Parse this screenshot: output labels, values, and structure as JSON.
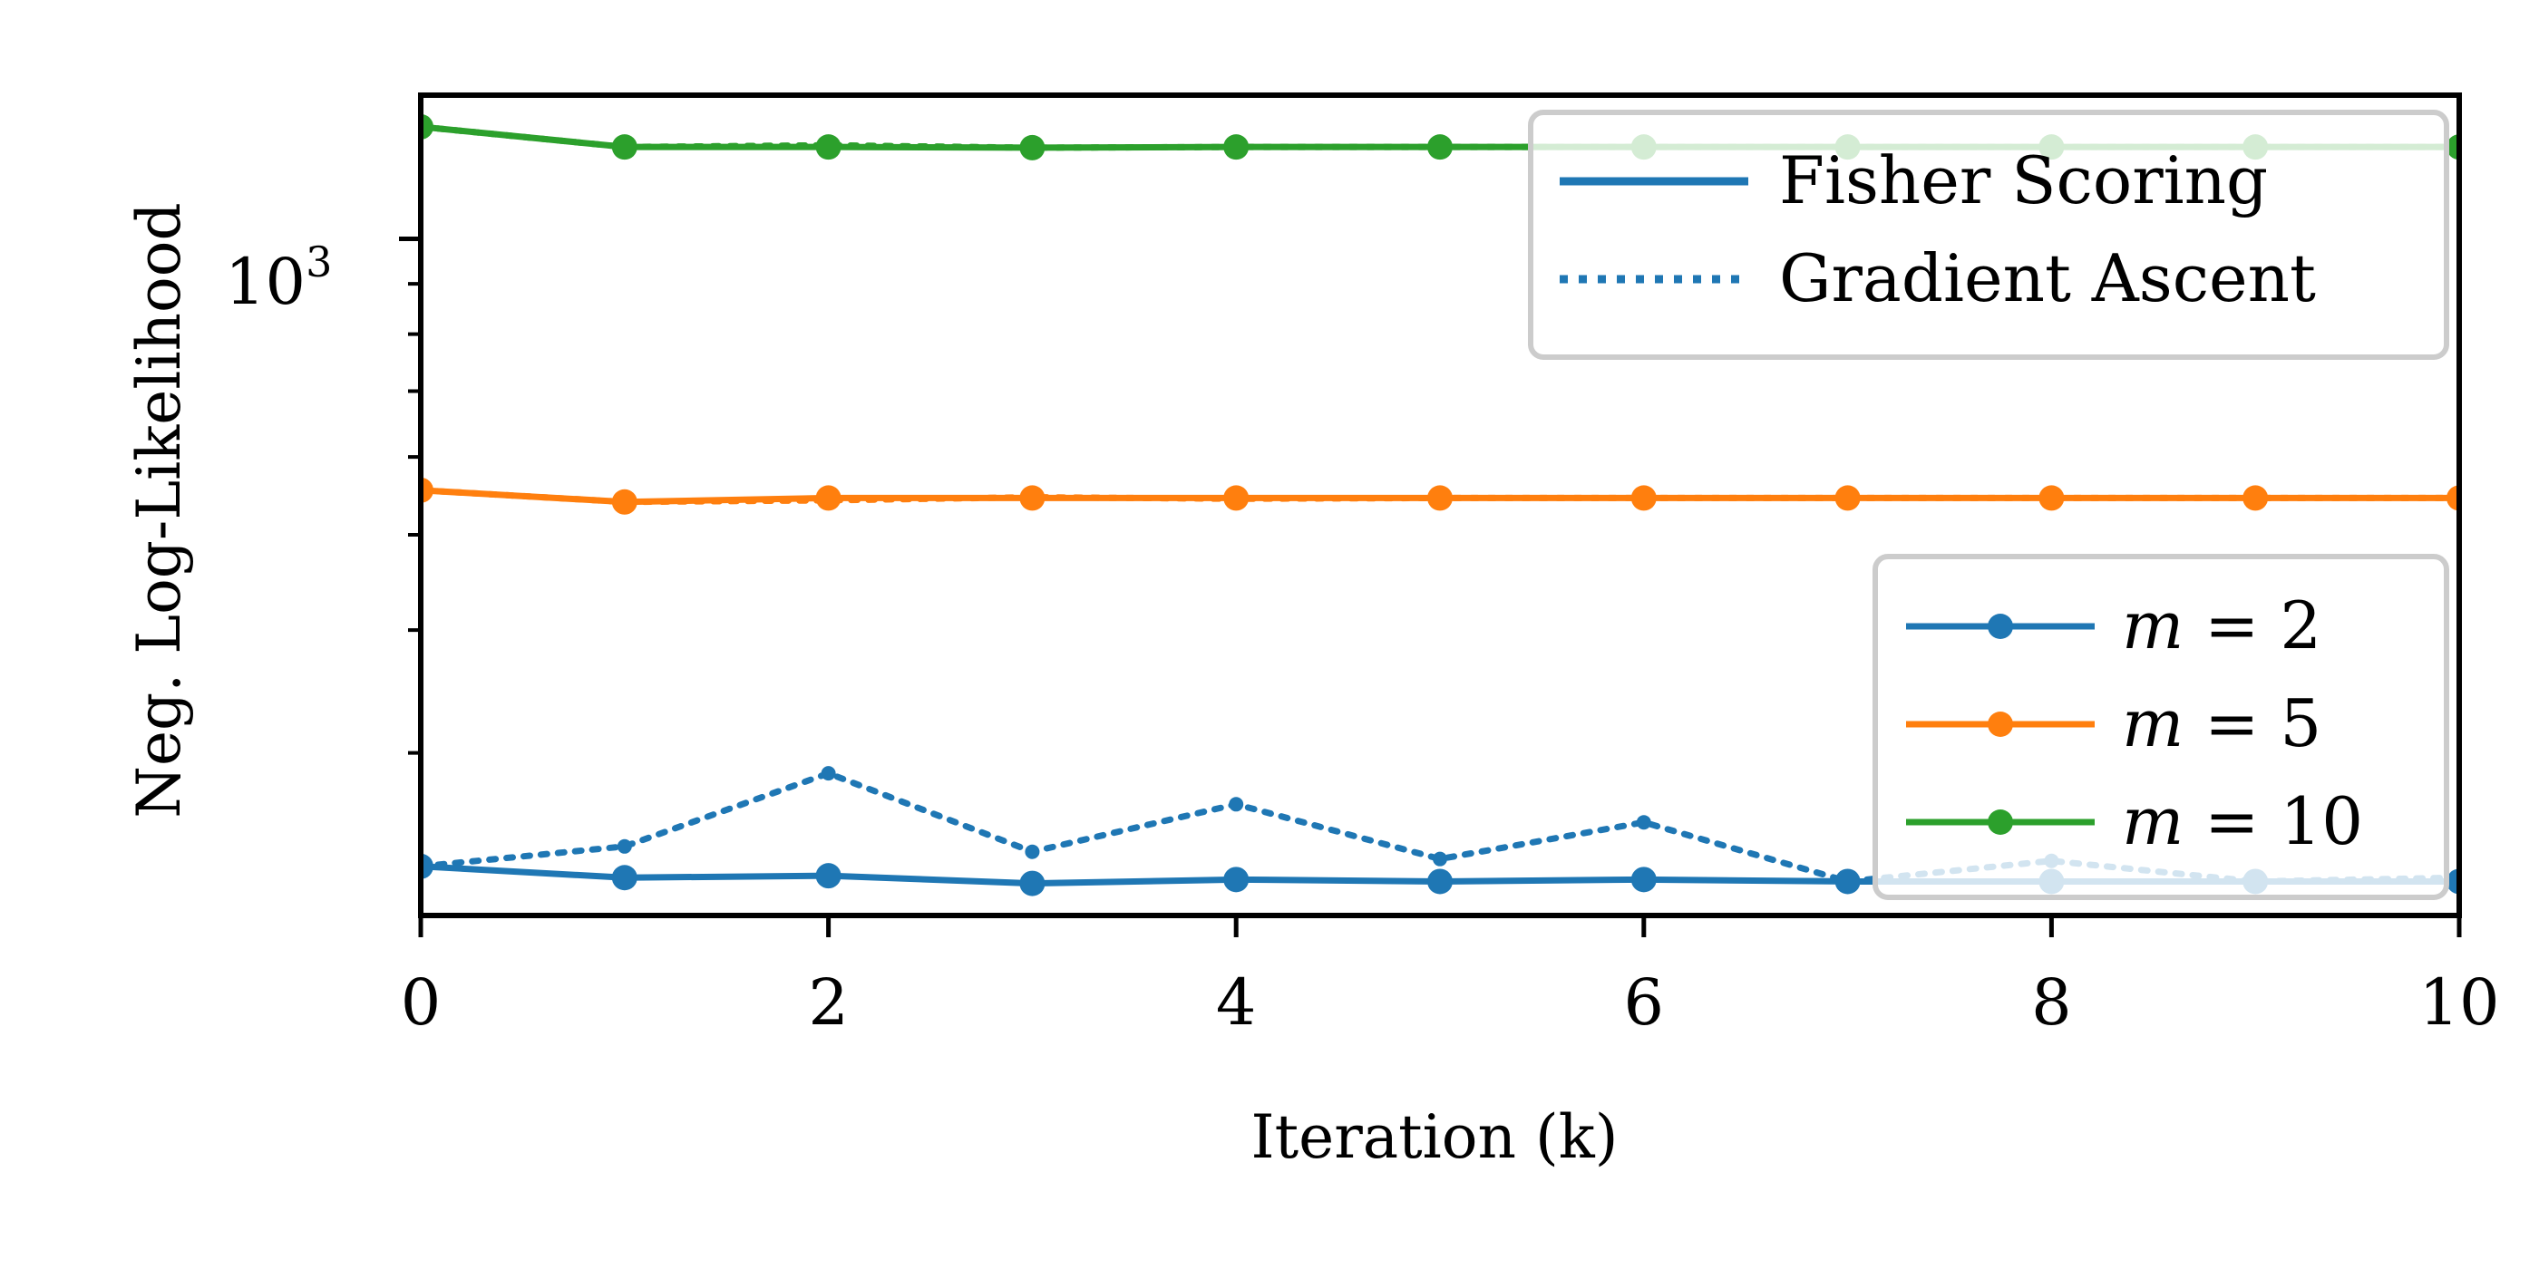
{
  "chart_data": {
    "type": "line",
    "xlabel": "Iteration (k)",
    "ylabel": "Neg. Log-Likelihood",
    "xlim": [
      0,
      10
    ],
    "ylim": [
      205,
      1400
    ],
    "yscale": "log",
    "x_ticks": [
      "0",
      "2",
      "4",
      "6",
      "8",
      "10"
    ],
    "y_tick_label": {
      "base": "10",
      "exponent": "3",
      "value": 1000
    },
    "grid": false,
    "x": [
      0,
      1,
      2,
      3,
      4,
      5,
      6,
      7,
      8,
      9,
      10
    ],
    "method_legend": {
      "placement": "top-right",
      "entries": [
        {
          "label": "Fisher Scoring",
          "linestyle": "solid"
        },
        {
          "label": "Gradient Ascent",
          "linestyle": "dotted"
        }
      ]
    },
    "series_legend": {
      "placement": "lower-right",
      "entries": [
        {
          "var": "m",
          "eq": " = ",
          "num": "2",
          "color": "#1f77b4"
        },
        {
          "var": "m",
          "eq": " = ",
          "num": "5",
          "color": "#ff7f0e"
        },
        {
          "var": "m",
          "eq": " = ",
          "num": "10",
          "color": "#2ca02c"
        }
      ]
    },
    "series": [
      {
        "name": "m = 2",
        "method": "Fisher Scoring",
        "linestyle": "solid",
        "color": "#1f77b4",
        "values": [
          230,
          224,
          225,
          221,
          223,
          222,
          223,
          222,
          222,
          222,
          222
        ]
      },
      {
        "name": "m = 2",
        "method": "Gradient Ascent",
        "linestyle": "dotted",
        "color": "#1f77b4",
        "values": [
          230,
          241,
          286,
          238,
          266,
          234,
          255,
          222,
          233,
          222,
          224
        ]
      },
      {
        "name": "m = 5",
        "method": "Fisher Scoring",
        "linestyle": "solid",
        "color": "#ff7f0e",
        "values": [
          555,
          540,
          545,
          545,
          545,
          545,
          545,
          545,
          545,
          545,
          545
        ]
      },
      {
        "name": "m = 5",
        "method": "Gradient Ascent",
        "linestyle": "dotted",
        "color": "#ff7f0e",
        "values": [
          555,
          540,
          542,
          546,
          544,
          545,
          545,
          545,
          545,
          545,
          545
        ]
      },
      {
        "name": "m = 10",
        "method": "Fisher Scoring",
        "linestyle": "solid",
        "color": "#2ca02c",
        "values": [
          1300,
          1240,
          1240,
          1238,
          1240,
          1240,
          1240,
          1240,
          1240,
          1240,
          1240
        ]
      },
      {
        "name": "m = 10",
        "method": "Gradient Ascent",
        "linestyle": "dotted",
        "color": "#2ca02c",
        "values": [
          1300,
          1240,
          1245,
          1238,
          1240,
          1240,
          1240,
          1240,
          1240,
          1240,
          1240
        ]
      }
    ],
    "colors": {
      "m2": "#1f77b4",
      "m5": "#ff7f0e",
      "m10": "#2ca02c",
      "legend_frame": "#cccccc"
    }
  }
}
